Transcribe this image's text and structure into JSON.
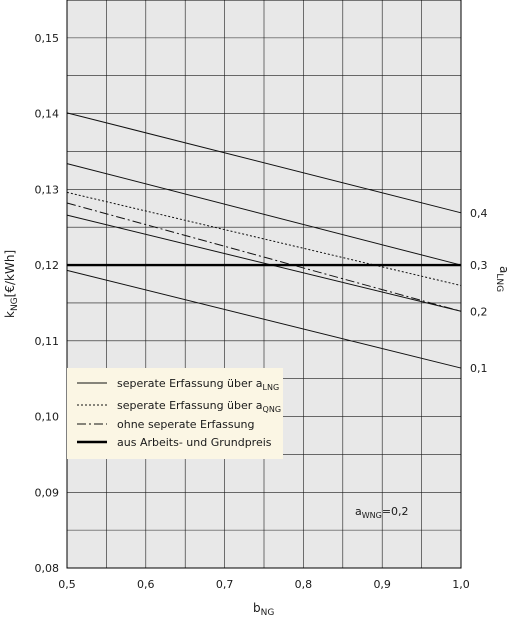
{
  "chart_data": {
    "type": "line",
    "title": "",
    "xlabel": "b",
    "xlabel_sub": "NG",
    "ylabel": "k",
    "ylabel_sub": "NG",
    "ylabel_suffix": "[€/kWh]",
    "right_label": "a",
    "right_label_sub": "LNG",
    "xlim": [
      0.5,
      1.0
    ],
    "ylim": [
      0.08,
      0.155
    ],
    "x_ticks": [
      "0,5",
      "0,6",
      "0,7",
      "0,8",
      "0,9",
      "1,0"
    ],
    "x_tick_values": [
      0.5,
      0.6,
      0.7,
      0.8,
      0.9,
      1.0
    ],
    "y_ticks": [
      "0,08",
      "0,09",
      "0,10",
      "0,11",
      "0,12",
      "0,13",
      "0,14",
      "0,15"
    ],
    "y_tick_values": [
      0.08,
      0.09,
      0.1,
      0.11,
      0.12,
      0.13,
      0.14,
      0.15
    ],
    "grid": true,
    "background": "#e8e8e8",
    "series": [
      {
        "name": "seperate Erfassung über aLNG",
        "style": "solid",
        "x": [
          0.5,
          1.0
        ],
        "y": [
          0.1401,
          0.1269
        ],
        "end_label": "0,4"
      },
      {
        "name": "seperate Erfassung über aLNG",
        "style": "solid",
        "x": [
          0.5,
          1.0
        ],
        "y": [
          0.1334,
          0.12
        ],
        "end_label": "0,3"
      },
      {
        "name": "seperate Erfassung über aLNG",
        "style": "solid",
        "x": [
          0.5,
          1.0
        ],
        "y": [
          0.1266,
          0.1139
        ],
        "end_label": "0,2"
      },
      {
        "name": "seperate Erfassung über aLNG",
        "style": "solid",
        "x": [
          0.5,
          1.0
        ],
        "y": [
          0.1193,
          0.1064
        ],
        "end_label": "0,1"
      },
      {
        "name": "seperate Erfassung über aQNG",
        "style": "dotted",
        "x": [
          0.5,
          1.0
        ],
        "y": [
          0.1296,
          0.1173
        ]
      },
      {
        "name": "ohne seperate Erfassung",
        "style": "dashdot",
        "x": [
          0.5,
          1.0
        ],
        "y": [
          0.1282,
          0.1139
        ]
      },
      {
        "name": "aus Arbeits- und Grundpreis",
        "style": "thick",
        "x": [
          0.5,
          1.0
        ],
        "y": [
          0.12,
          0.12
        ]
      }
    ],
    "legend": {
      "placement": "lower-left",
      "entries": [
        {
          "style": "solid",
          "text": "seperate Erfassung über a",
          "sub": "LNG"
        },
        {
          "style": "dotted",
          "text": "seperate Erfassung über a",
          "sub": "QNG"
        },
        {
          "style": "dashdot",
          "text": "ohne seperate Erfassung",
          "sub": ""
        },
        {
          "style": "thick",
          "text": "aus Arbeits- und Grundpreis",
          "sub": ""
        }
      ]
    },
    "annotation": {
      "text": "a",
      "sub": "WNG",
      "suffix": "=0,2",
      "x": 0.93,
      "y": 0.087
    }
  }
}
